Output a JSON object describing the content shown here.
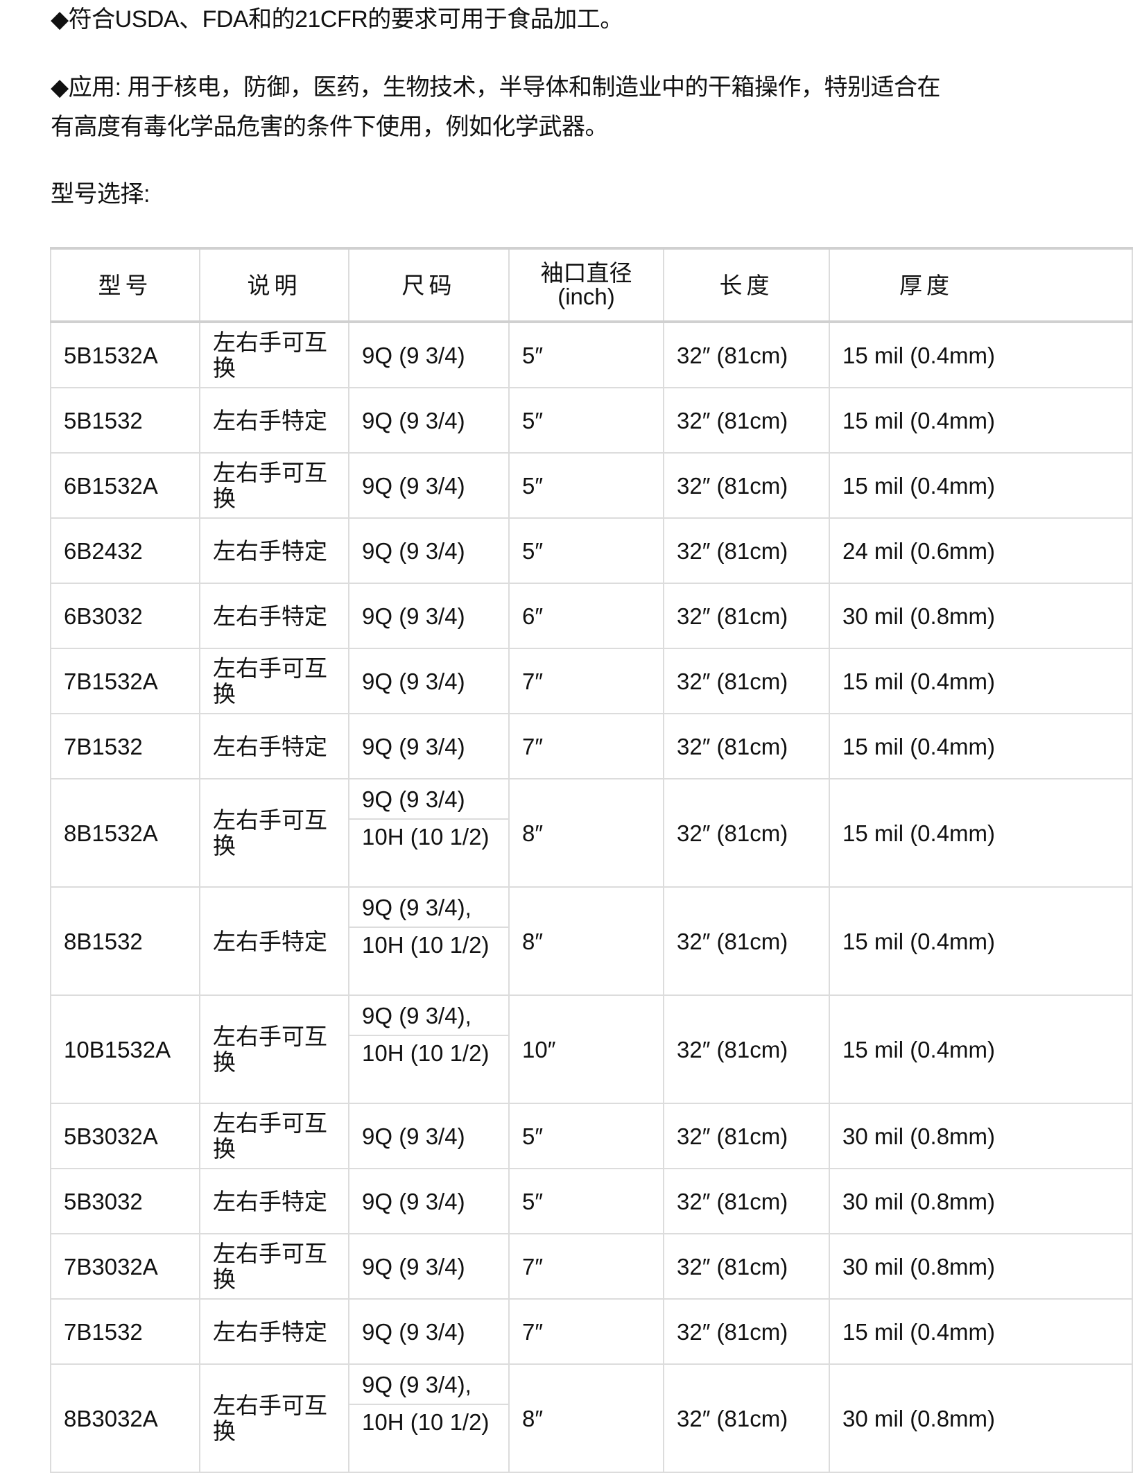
{
  "paragraphs": {
    "compliance": "◆符合USDA、FDA和的21CFR的要求可用于食品加工。",
    "application": "◆应用: 用于核电，防御，医药，生物技术，半导体和制造业中的干箱操作，特别适合在有高度有毒化学品危害的条件下使用，例如化学武器。",
    "selection_title": "型号选择:"
  },
  "table": {
    "headers": [
      "型号",
      "说明",
      "尺码",
      "袖口直径\n(inch)",
      "长度",
      "厚度"
    ],
    "rows": [
      {
        "model": "5B1532A",
        "desc": "左右手可互换",
        "sizes": [
          "9Q (9 3/4)"
        ],
        "cuff": "5″",
        "length": "32″ (81cm)",
        "thickness": "15 mil (0.4mm)"
      },
      {
        "model": "5B1532",
        "desc": "左右手特定",
        "sizes": [
          "9Q (9 3/4)"
        ],
        "cuff": "5″",
        "length": "32″ (81cm)",
        "thickness": "15 mil (0.4mm)"
      },
      {
        "model": "6B1532A",
        "desc": "左右手可互换",
        "sizes": [
          "9Q (9 3/4)"
        ],
        "cuff": "5″",
        "length": "32″ (81cm)",
        "thickness": "15 mil (0.4mm)"
      },
      {
        "model": "6B2432",
        "desc": "左右手特定",
        "sizes": [
          "9Q (9 3/4)"
        ],
        "cuff": "5″",
        "length": "32″ (81cm)",
        "thickness": "24 mil (0.6mm)"
      },
      {
        "model": "6B3032",
        "desc": "左右手特定",
        "sizes": [
          "9Q (9 3/4)"
        ],
        "cuff": "6″",
        "length": "32″ (81cm)",
        "thickness": "30 mil (0.8mm)"
      },
      {
        "model": "7B1532A",
        "desc": "左右手可互换",
        "sizes": [
          "9Q (9 3/4)"
        ],
        "cuff": "7″",
        "length": "32″ (81cm)",
        "thickness": "15 mil (0.4mm)"
      },
      {
        "model": "7B1532",
        "desc": "左右手特定",
        "sizes": [
          "9Q (9 3/4)"
        ],
        "cuff": "7″",
        "length": "32″ (81cm)",
        "thickness": "15 mil (0.4mm)"
      },
      {
        "model": "8B1532A",
        "desc": "左右手可互换",
        "sizes": [
          "9Q (9 3/4)",
          "10H (10 1/2)"
        ],
        "cuff": "8″",
        "length": "32″ (81cm)",
        "thickness": "15 mil (0.4mm)"
      },
      {
        "model": "8B1532",
        "desc": "左右手特定",
        "sizes": [
          "9Q (9 3/4),",
          "10H (10 1/2)"
        ],
        "cuff": "8″",
        "length": "32″ (81cm)",
        "thickness": "15 mil (0.4mm)"
      },
      {
        "model": "10B1532A",
        "desc": "左右手可互换",
        "sizes": [
          "9Q (9 3/4),",
          "10H (10 1/2)"
        ],
        "cuff": "10″",
        "length": "32″ (81cm)",
        "thickness": "15 mil (0.4mm)"
      },
      {
        "model": "5B3032A",
        "desc": "左右手可互换",
        "sizes": [
          "9Q (9 3/4)"
        ],
        "cuff": "5″",
        "length": "32″ (81cm)",
        "thickness": "30 mil (0.8mm)"
      },
      {
        "model": "5B3032",
        "desc": "左右手特定",
        "sizes": [
          "9Q (9 3/4)"
        ],
        "cuff": "5″",
        "length": "32″ (81cm)",
        "thickness": "30 mil (0.8mm)"
      },
      {
        "model": "7B3032A",
        "desc": "左右手可互换",
        "sizes": [
          "9Q (9 3/4)"
        ],
        "cuff": "7″",
        "length": "32″ (81cm)",
        "thickness": "30 mil (0.8mm)"
      },
      {
        "model": "7B1532",
        "desc": "左右手特定",
        "sizes": [
          "9Q (9 3/4)"
        ],
        "cuff": "7″",
        "length": "32″ (81cm)",
        "thickness": "15 mil (0.4mm)"
      },
      {
        "model": "8B3032A",
        "desc": "左右手可互换",
        "sizes": [
          "9Q (9 3/4),",
          "10H (10 1/2)"
        ],
        "cuff": "8″",
        "length": "32″ (81cm)",
        "thickness": "30 mil (0.8mm)"
      }
    ]
  }
}
